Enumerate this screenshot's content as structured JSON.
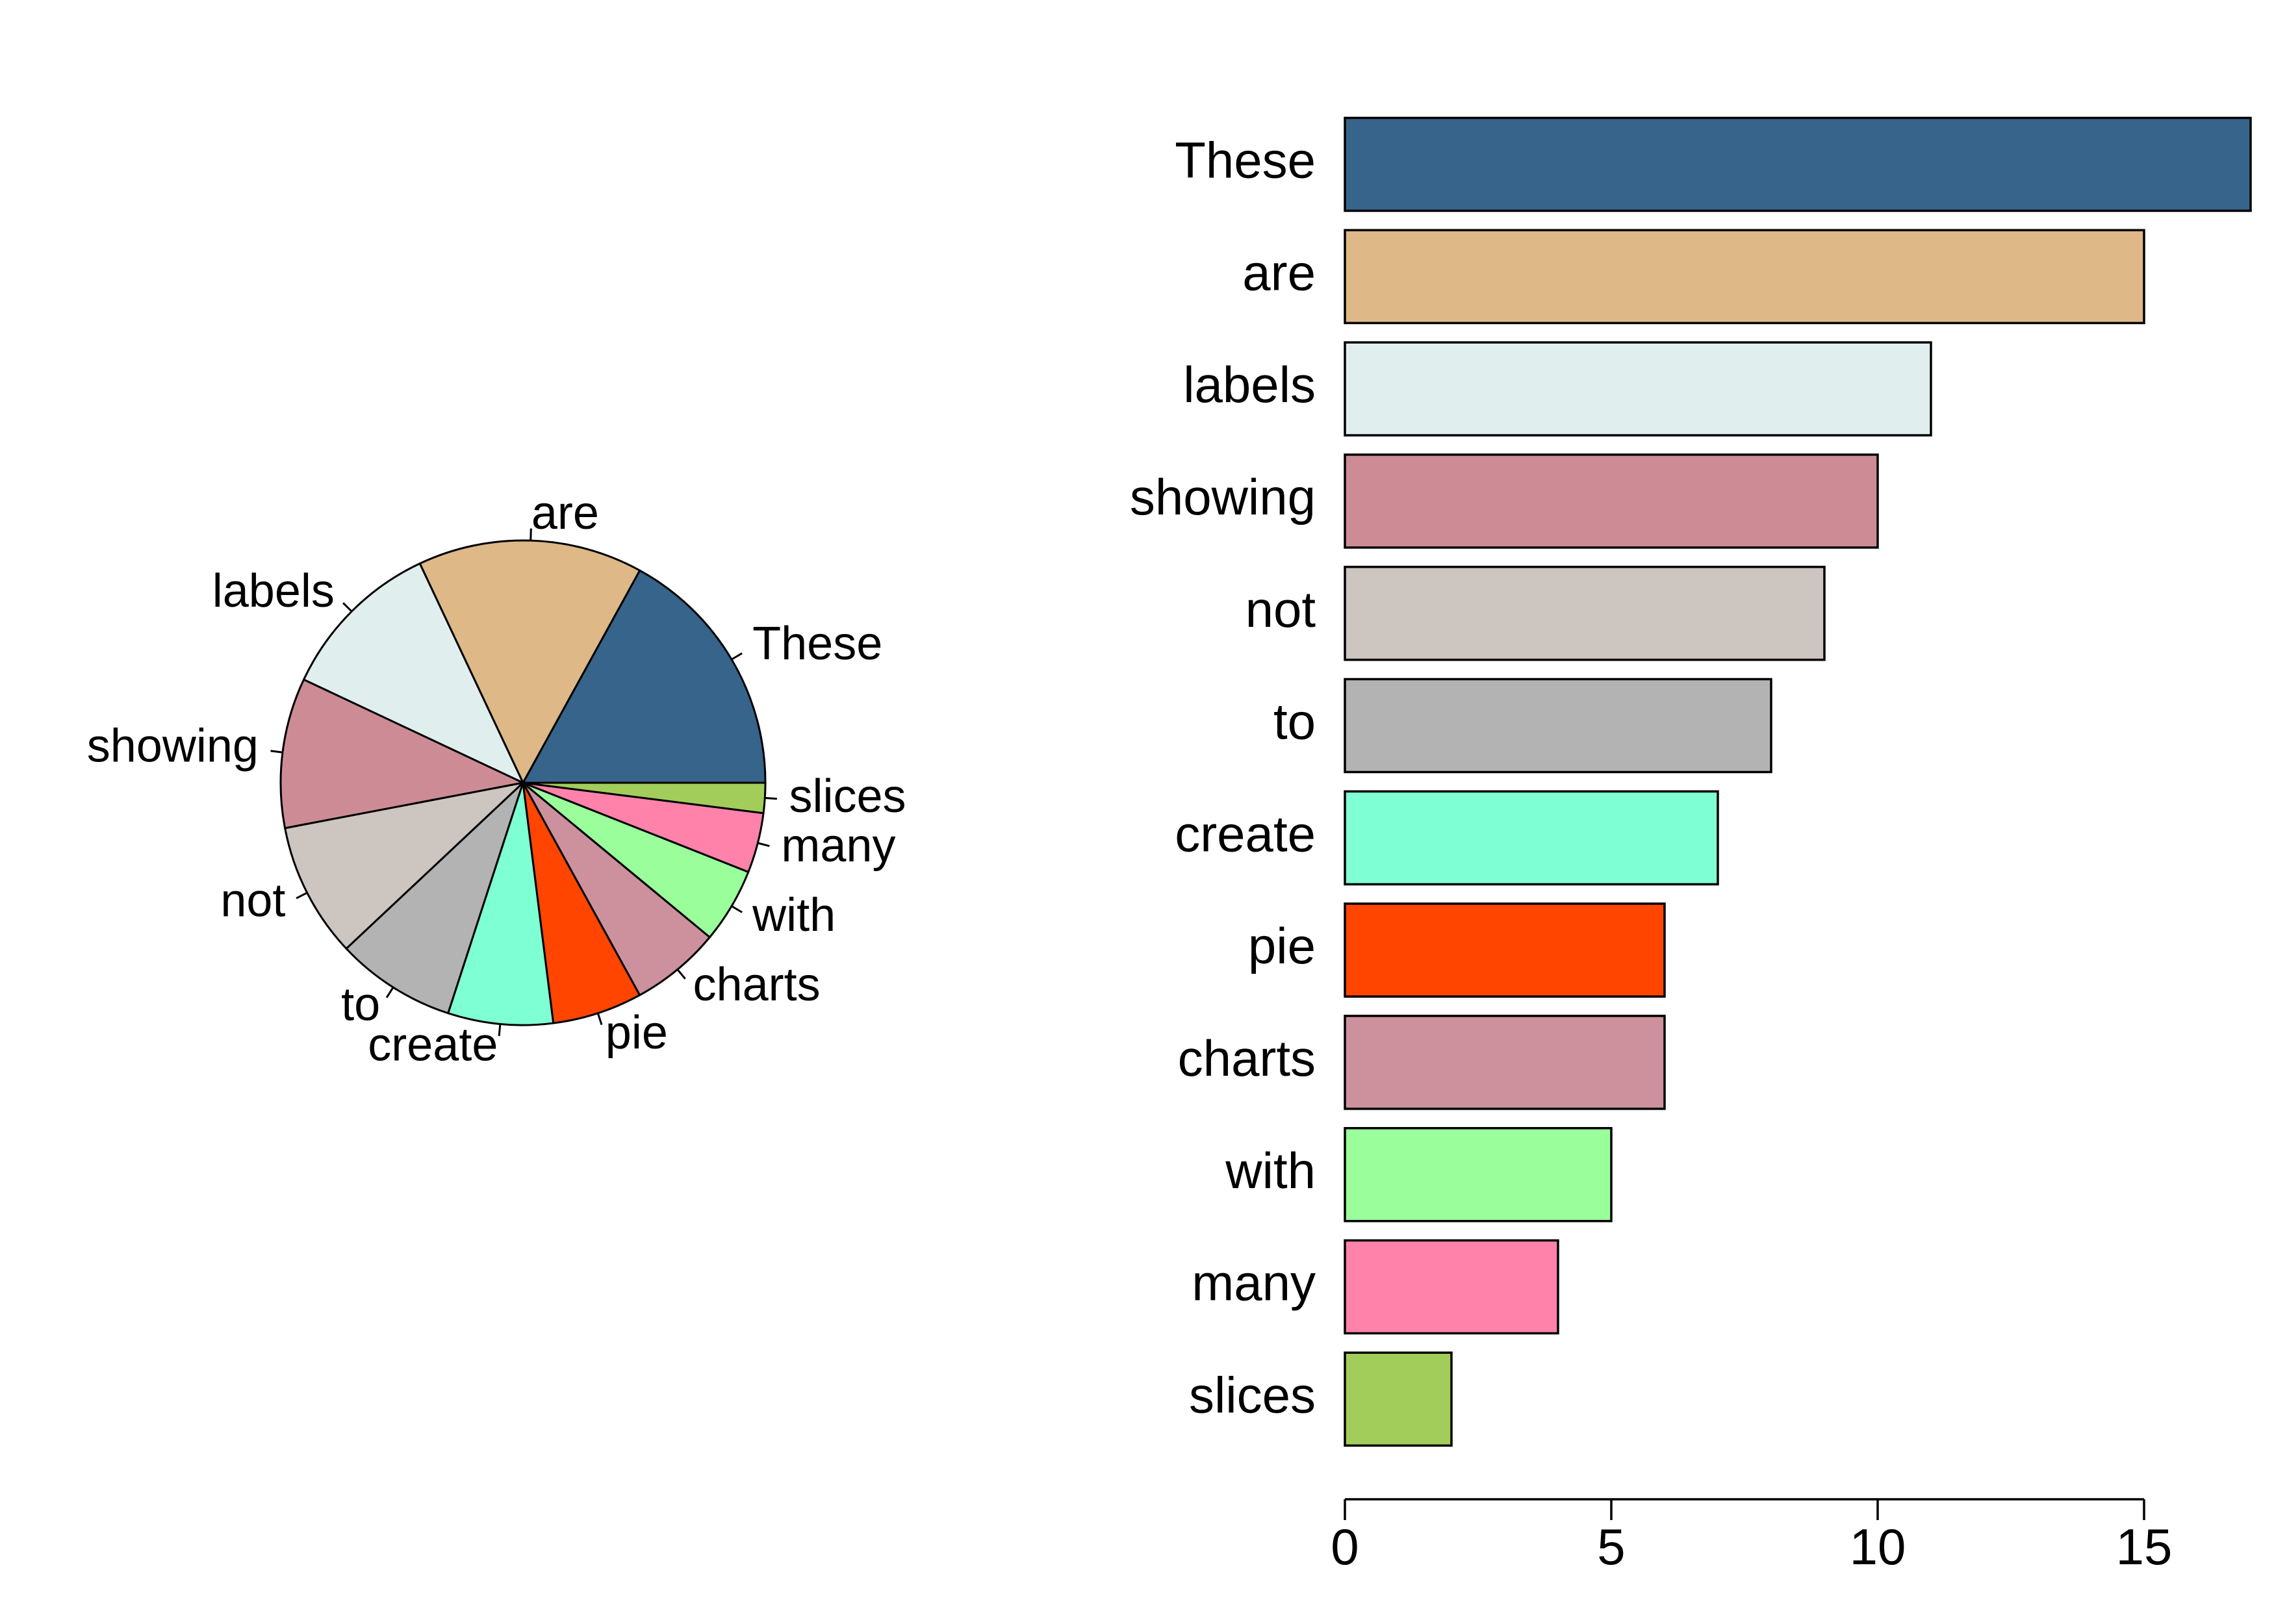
{
  "chart_data": [
    {
      "type": "pie",
      "title": "",
      "categories": [
        "These",
        "are",
        "labels",
        "showing",
        "not",
        "to",
        "create",
        "pie",
        "charts",
        "with",
        "many",
        "slices"
      ],
      "values": [
        17,
        15,
        11,
        10,
        9,
        8,
        7,
        6,
        6,
        5,
        4,
        2
      ],
      "colors": [
        "#36648B",
        "#DEB887",
        "#E0EEEE",
        "#CD8C95",
        "#CDC5BF",
        "#B3B3B3",
        "#7FFFD4",
        "#FF4500",
        "#CD919E",
        "#9AFF9A",
        "#FF82AB",
        "#A2CD5A"
      ],
      "start": "3 o'clock",
      "direction": "counter-clockwise"
    },
    {
      "type": "bar",
      "orientation": "horizontal",
      "title": "",
      "xlabel": "",
      "ylabel": "",
      "categories": [
        "These",
        "are",
        "labels",
        "showing",
        "not",
        "to",
        "create",
        "pie",
        "charts",
        "with",
        "many",
        "slices"
      ],
      "values": [
        17,
        15,
        11,
        10,
        9,
        8,
        7,
        6,
        6,
        5,
        4,
        2
      ],
      "colors": [
        "#36648B",
        "#DEB887",
        "#E0EEEE",
        "#CD8C95",
        "#CDC5BF",
        "#B3B3B3",
        "#7FFFD4",
        "#FF4500",
        "#CD919E",
        "#9AFF9A",
        "#FF82AB",
        "#A2CD5A"
      ],
      "xlim": [
        0,
        17
      ],
      "xticks": [
        "0",
        "5",
        "10",
        "15"
      ],
      "grid": false,
      "legend": "none"
    }
  ]
}
